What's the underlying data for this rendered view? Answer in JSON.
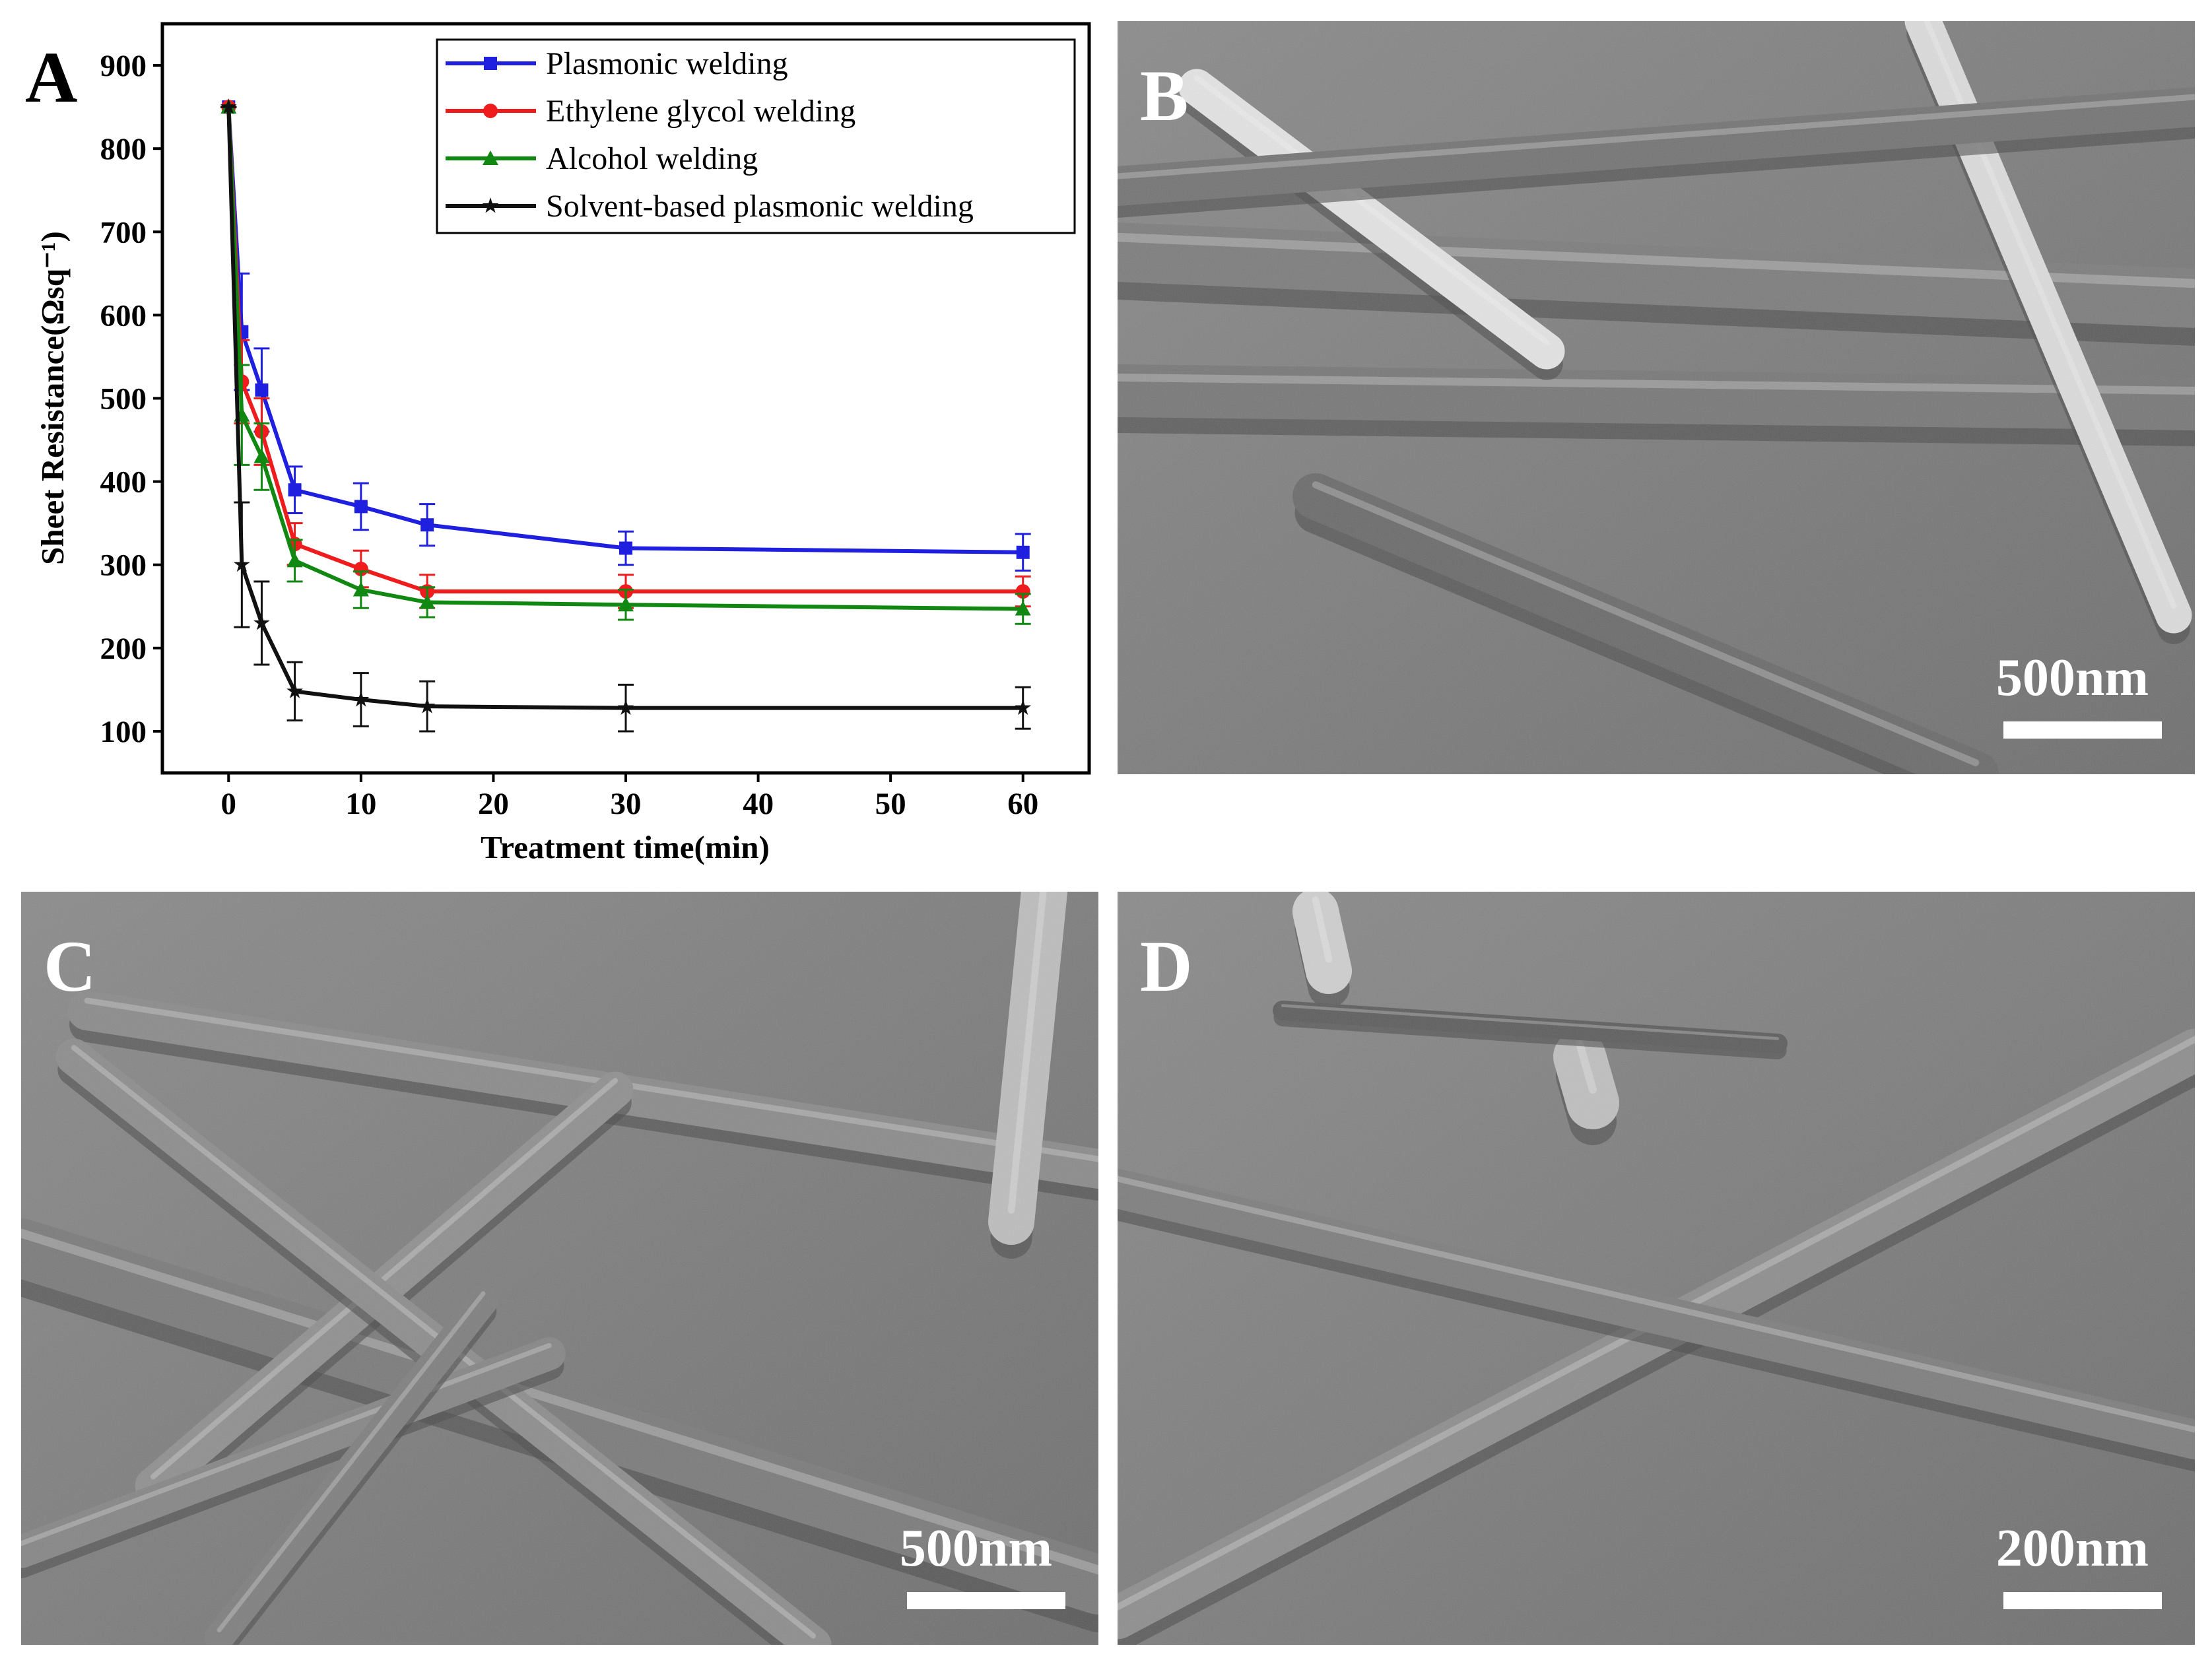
{
  "chart_data": {
    "type": "line",
    "panel_label": "A",
    "x_label": "Treatment time(min)",
    "y_label": "Sheet Resistance(Ωsq⁻¹)",
    "x": [
      0,
      1,
      2.5,
      5,
      10,
      15,
      30,
      60
    ],
    "series": [
      {
        "name": "Plasmonic welding",
        "color": "#1f1fe0",
        "marker": "square",
        "values": [
          850,
          580,
          510,
          390,
          370,
          348,
          320,
          315
        ],
        "errors": [
          0,
          70,
          50,
          28,
          28,
          25,
          20,
          22
        ]
      },
      {
        "name": "Ethylene glycol welding",
        "color": "#ee1c1c",
        "marker": "circle",
        "values": [
          850,
          520,
          460,
          325,
          295,
          268,
          268,
          268
        ],
        "errors": [
          0,
          50,
          40,
          25,
          22,
          20,
          20,
          18
        ]
      },
      {
        "name": "Alcohol welding",
        "color": "#118811",
        "marker": "triangle",
        "values": [
          850,
          480,
          430,
          305,
          270,
          255,
          252,
          247
        ],
        "errors": [
          0,
          60,
          40,
          25,
          22,
          18,
          18,
          18
        ]
      },
      {
        "name": "Solvent-based plasmonic welding",
        "color": "#111111",
        "marker": "star",
        "values": [
          850,
          300,
          230,
          148,
          138,
          130,
          128,
          128
        ],
        "errors": [
          0,
          75,
          50,
          35,
          32,
          30,
          28,
          25
        ]
      }
    ],
    "xlim": [
      -5,
      65
    ],
    "xticks": [
      0,
      10,
      20,
      30,
      40,
      50,
      60
    ],
    "ylim": [
      50,
      950
    ],
    "yticks": [
      100,
      200,
      300,
      400,
      500,
      600,
      700,
      800,
      900
    ],
    "legend": "upper right"
  },
  "panels": [
    {
      "label": "B",
      "scale_bar": "500nm"
    },
    {
      "label": "C",
      "scale_bar": "500nm"
    },
    {
      "label": "D",
      "scale_bar": "200nm"
    }
  ]
}
